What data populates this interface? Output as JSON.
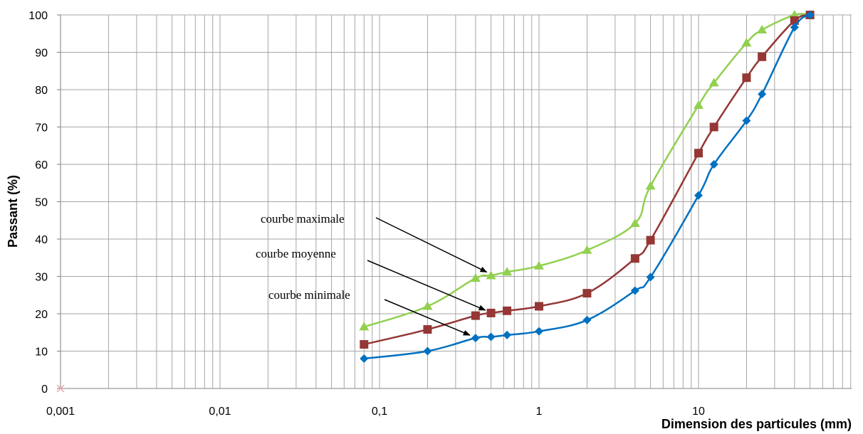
{
  "chart_data": {
    "type": "line",
    "xlabel": "Dimension des particules (mm)",
    "ylabel": "Passant (%)",
    "xscale": "log",
    "xlim": [
      0.001,
      60
    ],
    "ylim": [
      0,
      100
    ],
    "grid": true,
    "x_tick_labels": [
      "0,001",
      "0,01",
      "0,1",
      "1",
      "10"
    ],
    "y_tick_labels": [
      "0",
      "10",
      "20",
      "30",
      "40",
      "50",
      "60",
      "70",
      "80",
      "90",
      "100"
    ],
    "x": [
      0.08,
      0.2,
      0.4,
      0.5,
      0.63,
      1,
      2,
      4,
      5,
      10,
      12.5,
      20,
      25,
      40,
      50
    ],
    "series": [
      {
        "name": "courbe maximale",
        "color": "#92D050",
        "marker": "triangle",
        "values": [
          16.5,
          22,
          29.5,
          30.2,
          31.2,
          32.8,
          37,
          44.2,
          54.2,
          75.8,
          81.8,
          92.5,
          96,
          100,
          100
        ]
      },
      {
        "name": "courbe moyenne",
        "color": "#953735",
        "marker": "square",
        "values": [
          11.8,
          15.8,
          19.5,
          20.2,
          20.8,
          22,
          25.5,
          34.8,
          39.7,
          63,
          70,
          83.2,
          88.8,
          98.5,
          100
        ]
      },
      {
        "name": "courbe minimale",
        "color": "#0070C0",
        "marker": "diamond",
        "values": [
          8,
          10,
          13.5,
          13.8,
          14.3,
          15.3,
          18.3,
          26.2,
          29.8,
          51.7,
          60,
          71.7,
          78.8,
          96.7,
          100
        ]
      }
    ],
    "annotations": [
      {
        "text": "courbe maximale",
        "target_series": 0,
        "target_x": 0.5
      },
      {
        "text": "courbe moyenne",
        "target_series": 1,
        "target_x": 0.5
      },
      {
        "text": "courbe minimale",
        "target_series": 2,
        "target_x": 0.4
      }
    ]
  }
}
